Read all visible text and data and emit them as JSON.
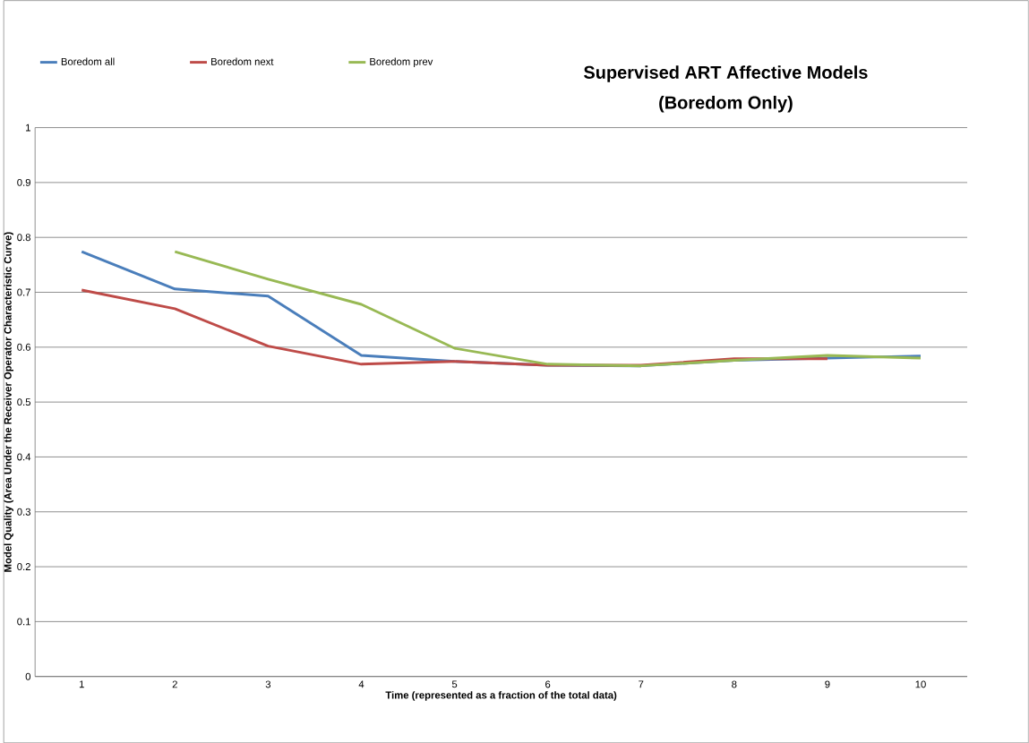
{
  "chart_data": {
    "type": "line",
    "title": "Supervised ART Affective Models",
    "subtitle": "(Boredom Only)",
    "xlabel": "Time (represented as a fraction of the total data)",
    "ylabel": "Model Quality (Area Under the Receiver Operator Characteristic Curve)",
    "categories": [
      "1",
      "2",
      "3",
      "4",
      "5",
      "6",
      "7",
      "8",
      "9",
      "10"
    ],
    "series": [
      {
        "name": "Boredom all",
        "color": "#4a7ebb",
        "values": [
          0.774,
          0.706,
          0.693,
          0.585,
          0.574,
          0.567,
          0.566,
          0.576,
          0.58,
          0.584
        ]
      },
      {
        "name": "Boredom next",
        "color": "#be4b48",
        "values": [
          0.704,
          0.67,
          0.602,
          0.569,
          0.574,
          0.567,
          0.567,
          0.579,
          0.579,
          null
        ]
      },
      {
        "name": "Boredom prev",
        "color": "#98b954",
        "values": [
          null,
          0.774,
          0.724,
          0.678,
          0.598,
          0.569,
          0.566,
          0.576,
          0.585,
          0.58
        ]
      }
    ],
    "ylim": [
      0,
      1
    ],
    "yticks": [
      0,
      0.1,
      0.2,
      0.3,
      0.4,
      0.5,
      0.6,
      0.7,
      0.8,
      0.9,
      1
    ],
    "grid": "y",
    "legend": "top left",
    "marker": "none",
    "line_style": "solid"
  }
}
